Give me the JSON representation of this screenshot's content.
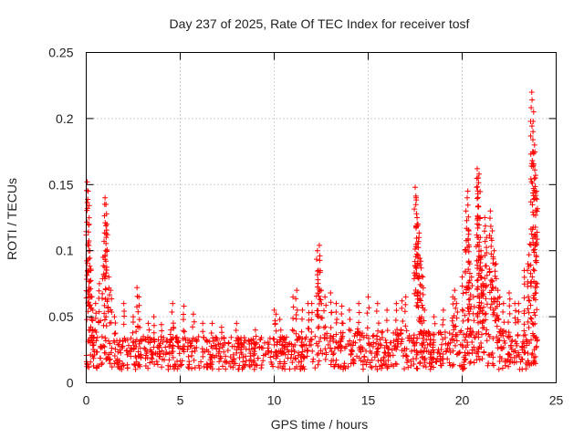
{
  "chart_data": {
    "type": "scatter",
    "title": "Day 237 of 2025, Rate Of TEC Index for receiver tosf",
    "xlabel": "GPS time / hours",
    "ylabel": "ROTI / TECUs",
    "xlim": [
      0,
      25
    ],
    "ylim": [
      0,
      0.25
    ],
    "x_ticks": [
      "0",
      "5",
      "10",
      "15",
      "20",
      "25"
    ],
    "y_ticks": [
      "0",
      "0.05",
      "0.1",
      "0.15",
      "0.2",
      "0.25"
    ],
    "x_tick_values": [
      0,
      5,
      10,
      15,
      20,
      25
    ],
    "y_tick_values": [
      0,
      0.05,
      0.1,
      0.15,
      0.2,
      0.25
    ],
    "grid": true,
    "marker": "+",
    "marker_color": "#ff0000",
    "series": [
      {
        "name": "ROTI",
        "background_band": {
          "x_range": [
            0,
            24
          ],
          "y_min": 0.01,
          "y_max": 0.035,
          "points_per_hour": 45
        },
        "x": [
          0.05,
          0.1,
          0.15,
          0.2,
          0.25,
          0.3,
          0.35,
          0.5,
          0.7,
          0.9,
          1.0,
          1.05,
          1.1,
          1.2,
          1.3,
          1.5,
          2.0,
          2.5,
          2.7,
          2.8,
          3.3,
          3.6,
          4.0,
          4.5,
          4.6,
          5.2,
          5.7,
          6.2,
          6.7,
          7.2,
          8.0,
          9.0,
          10.0,
          10.1,
          10.3,
          11.0,
          11.2,
          11.5,
          11.8,
          12.0,
          12.3,
          12.35,
          12.4,
          12.5,
          12.7,
          13.0,
          13.3,
          13.6,
          14.0,
          14.5,
          15.0,
          15.5,
          16.0,
          16.5,
          16.8,
          17.0,
          17.5,
          17.55,
          17.6,
          17.65,
          17.7,
          17.8,
          17.9,
          18.0,
          18.5,
          19.0,
          19.5,
          19.6,
          19.7,
          20.0,
          20.2,
          20.3,
          20.35,
          20.4,
          20.5,
          20.6,
          20.8,
          20.85,
          20.9,
          20.95,
          21.0,
          21.05,
          21.1,
          21.2,
          21.3,
          21.5,
          21.6,
          21.7,
          21.8,
          21.9,
          22.0,
          22.2,
          22.5,
          22.8,
          23.0,
          23.3,
          23.5,
          23.6,
          23.7,
          23.8,
          23.85,
          23.9,
          23.95
        ],
        "y": [
          0.152,
          0.145,
          0.12,
          0.1,
          0.085,
          0.065,
          0.055,
          0.06,
          0.075,
          0.095,
          0.14,
          0.135,
          0.12,
          0.08,
          0.07,
          0.05,
          0.06,
          0.05,
          0.072,
          0.065,
          0.045,
          0.05,
          0.044,
          0.04,
          0.06,
          0.058,
          0.052,
          0.045,
          0.045,
          0.042,
          0.045,
          0.04,
          0.055,
          0.052,
          0.048,
          0.065,
          0.07,
          0.055,
          0.06,
          0.06,
          0.1,
          0.085,
          0.104,
          0.07,
          0.065,
          0.068,
          0.06,
          0.058,
          0.055,
          0.06,
          0.065,
          0.06,
          0.055,
          0.06,
          0.062,
          0.065,
          0.148,
          0.14,
          0.125,
          0.12,
          0.11,
          0.092,
          0.08,
          0.055,
          0.05,
          0.055,
          0.065,
          0.07,
          0.06,
          0.08,
          0.13,
          0.145,
          0.115,
          0.09,
          0.08,
          0.065,
          0.162,
          0.155,
          0.158,
          0.125,
          0.1,
          0.085,
          0.075,
          0.125,
          0.11,
          0.13,
          0.115,
          0.1,
          0.09,
          0.07,
          0.065,
          0.06,
          0.068,
          0.06,
          0.06,
          0.085,
          0.09,
          0.105,
          0.22,
          0.205,
          0.18,
          0.155,
          0.145
        ]
      }
    ]
  }
}
